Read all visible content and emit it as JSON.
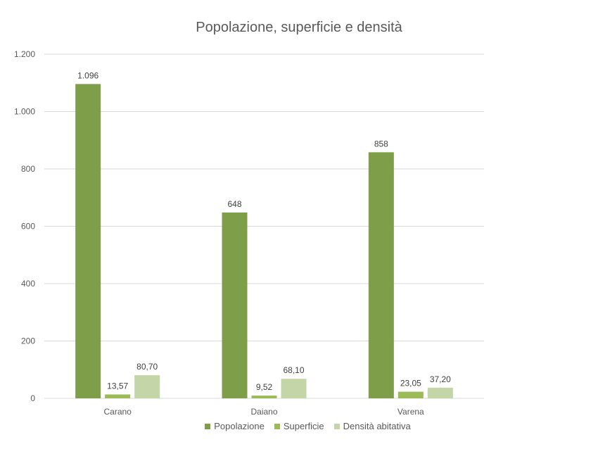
{
  "chart_data": {
    "type": "bar",
    "title": "Popolazione, superficie e densità",
    "xlabel": "",
    "ylabel": "",
    "categories": [
      "Carano",
      "Daiano",
      "Varena"
    ],
    "series": [
      {
        "name": "Popolazione",
        "color": "#7f9e4a",
        "values": [
          1096,
          648,
          858
        ],
        "labels": [
          "1.096",
          "648",
          "858"
        ]
      },
      {
        "name": "Superficie",
        "color": "#9bbb59",
        "values": [
          13.57,
          9.52,
          23.05
        ],
        "labels": [
          "13,57",
          "9,52",
          "23,05"
        ]
      },
      {
        "name": "Densità abitativa",
        "color": "#c4d6a8",
        "values": [
          80.7,
          68.1,
          37.2
        ],
        "labels": [
          "80,70",
          "68,10",
          "37,20"
        ]
      }
    ],
    "ylim": [
      0,
      1200
    ],
    "yticks": [
      0,
      200,
      400,
      600,
      800,
      1000,
      1200
    ],
    "ytick_labels": [
      "0",
      "200",
      "400",
      "600",
      "800",
      "1.000",
      "1.200"
    ],
    "grid": true,
    "legend_position": "bottom"
  }
}
